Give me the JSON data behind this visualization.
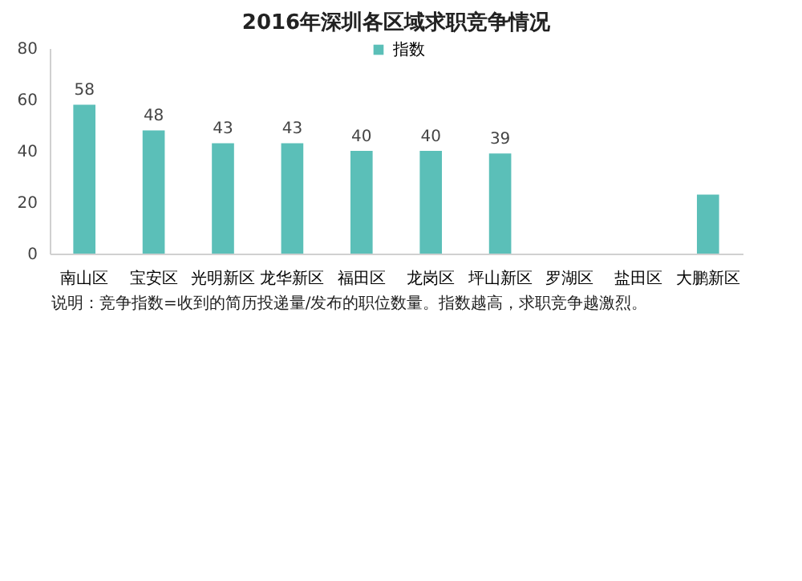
{
  "chart_data": {
    "type": "bar",
    "title": "2016年深圳各区域求职竞争情况",
    "categories": [
      "南山区",
      "宝安区",
      "光明新区",
      "龙华新区",
      "福田区",
      "龙岗区",
      "坪山新区",
      "罗湖区",
      "盐田区",
      "大鹏新区"
    ],
    "series": [
      {
        "name": "指数",
        "color": "#5bbfb8",
        "values": [
          58,
          48,
          43,
          43,
          40,
          40,
          39,
          null,
          null,
          23
        ]
      }
    ],
    "value_labels": [
      "58",
      "48",
      "43",
      "43",
      "40",
      "40",
      "39",
      null,
      null,
      null
    ],
    "ylim": [
      0,
      80
    ],
    "yticks": [
      0,
      20,
      40,
      60,
      80
    ],
    "grid": false,
    "legend": "top",
    "annotations": [
      "说明：竞争指数=收到的简历投递量/发布的职位数量。指数越高，求职竞争越激烈。"
    ]
  }
}
